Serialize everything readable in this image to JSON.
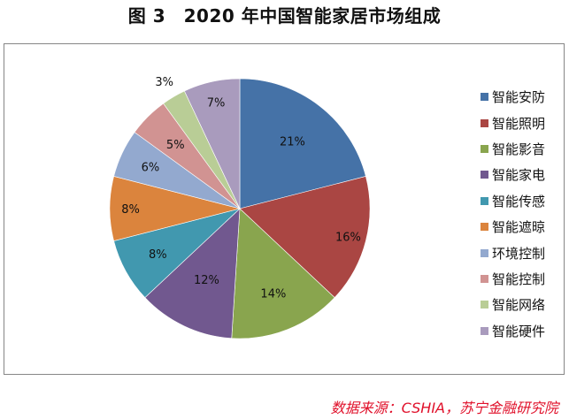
{
  "title": "图 3　2020 年中国智能家居市场组成",
  "source": "数据来源：CSHIA，苏宁金融研究院",
  "chart_data": {
    "type": "pie",
    "title": "图 3　2020 年中国智能家居市场组成",
    "categories": [
      "智能安防",
      "智能照明",
      "智能影音",
      "智能家电",
      "智能传感",
      "智能遮晾",
      "环境控制",
      "智能控制",
      "智能网络",
      "智能硬件"
    ],
    "values": [
      21,
      16,
      14,
      12,
      8,
      8,
      6,
      5,
      3,
      7
    ],
    "labels": [
      "21%",
      "16%",
      "14%",
      "12%",
      "8%",
      "8%",
      "6%",
      "5%",
      "3%",
      "7%"
    ],
    "colors": [
      "#4572A7",
      "#AA4643",
      "#89A54E",
      "#71588F",
      "#4198AF",
      "#DB843D",
      "#93A9CF",
      "#D19392",
      "#B9CD96",
      "#A99BBD"
    ],
    "start_angle": "12 o'clock",
    "direction": "clockwise",
    "legend_position": "right",
    "unit": "%"
  },
  "legend": {
    "items": [
      {
        "label": "智能安防",
        "color": "#4572A7"
      },
      {
        "label": "智能照明",
        "color": "#AA4643"
      },
      {
        "label": "智能影音",
        "color": "#89A54E"
      },
      {
        "label": "智能家电",
        "color": "#71588F"
      },
      {
        "label": "智能传感",
        "color": "#4198AF"
      },
      {
        "label": "智能遮晾",
        "color": "#DB843D"
      },
      {
        "label": "环境控制",
        "color": "#93A9CF"
      },
      {
        "label": "智能控制",
        "color": "#D19392"
      },
      {
        "label": "智能网络",
        "color": "#B9CD96"
      },
      {
        "label": "智能硬件",
        "color": "#A99BBD"
      }
    ]
  }
}
